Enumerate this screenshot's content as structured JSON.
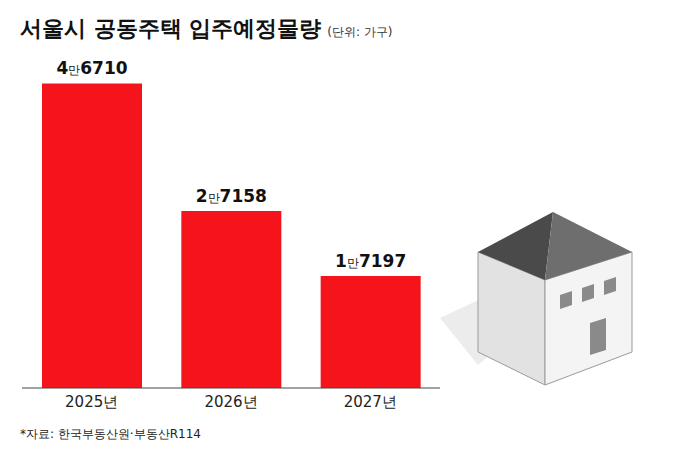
{
  "chart_data": {
    "type": "bar",
    "title": "서울시 공동주택 입주예정물량",
    "subtitle": "(단위: 가구)",
    "categories": [
      "2025년",
      "2026년",
      "2027년"
    ],
    "values": [
      46710,
      27158,
      17197
    ],
    "value_labels": [
      "4만6710",
      "2만7158",
      "1만7197"
    ],
    "color": "#f5141c",
    "ylim": [
      0,
      50000
    ],
    "grid": false,
    "data_labels": true,
    "tick_labels": "x",
    "source": "*자료: 한국부동산원·부동산R114"
  }
}
